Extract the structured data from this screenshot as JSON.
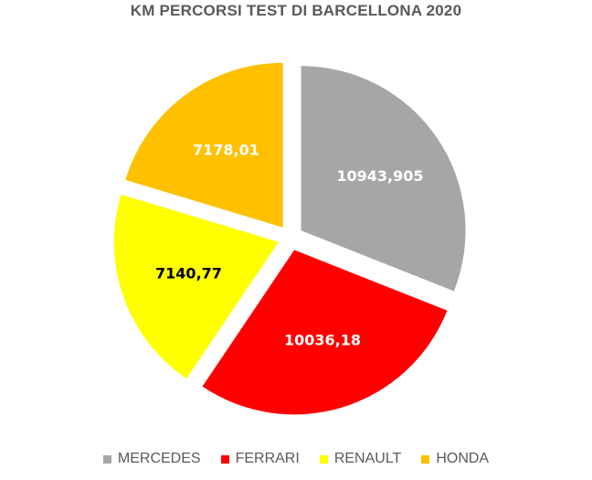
{
  "chart_data": {
    "type": "pie",
    "title": "KM PERCORSI TEST DI BARCELLONA 2020",
    "categories": [
      "MERCEDES",
      "FERRARI",
      "RENAULT",
      "HONDA"
    ],
    "values": [
      10943.905,
      10036.18,
      7140.77,
      7178.01
    ],
    "data_labels": [
      "10943,905",
      "10036,18",
      "7140,77",
      "7178,01"
    ],
    "colors": [
      "#a6a6a6",
      "#ff0000",
      "#ffff00",
      "#ffc000"
    ],
    "label_colors": [
      "#ffffff",
      "#ffffff",
      "#000000",
      "#ffffff"
    ],
    "exploded": true,
    "legend_position": "bottom"
  }
}
